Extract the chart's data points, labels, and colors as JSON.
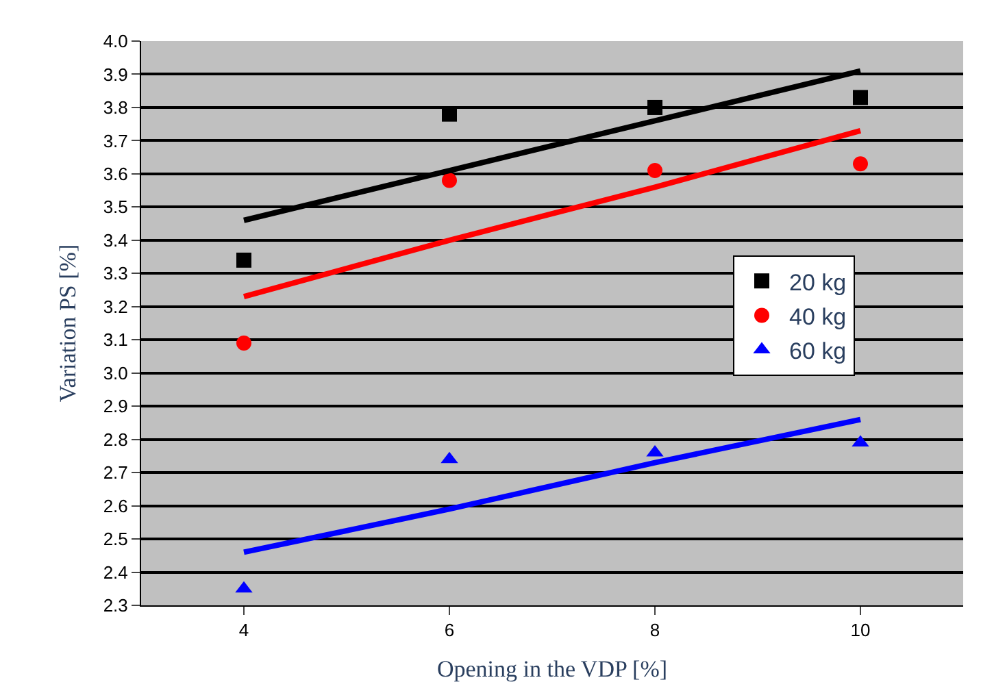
{
  "chart_data": {
    "type": "scatter",
    "xlabel": "Opening in the VDP [%]",
    "ylabel": "Variation PS [%]",
    "x": [
      4,
      6,
      8,
      10
    ],
    "series": [
      {
        "name": "20 kg",
        "color": "#000000",
        "marker": "square",
        "values": [
          3.34,
          3.78,
          3.8,
          3.83
        ]
      },
      {
        "name": "40 kg",
        "color": "#ff0000",
        "marker": "circle",
        "values": [
          3.09,
          3.58,
          3.61,
          3.63
        ]
      },
      {
        "name": "60 kg",
        "color": "#0000ff",
        "marker": "triangle",
        "values": [
          2.35,
          2.74,
          2.76,
          2.79
        ]
      },
      {
        "type": "line",
        "color": "#000000",
        "values": [
          3.46,
          3.61,
          3.76,
          3.91
        ],
        "line_style": "solid"
      },
      {
        "type": "line",
        "color": "#ff0000",
        "values": [
          3.23,
          3.4,
          3.56,
          3.73
        ],
        "line_style": "solid"
      },
      {
        "type": "line",
        "color": "#0000ff",
        "values": [
          2.46,
          2.59,
          2.73,
          2.86
        ],
        "line_style": "solid"
      }
    ],
    "xlim": [
      3,
      11
    ],
    "xticks": [
      4,
      6,
      8,
      10
    ],
    "ylim": [
      2.3,
      4.0
    ],
    "yticks": [
      {
        "value": 2.3,
        "label": "2.3"
      },
      {
        "value": 2.4,
        "label": "2.4"
      },
      {
        "value": 2.5,
        "label": "2.5"
      },
      {
        "value": 2.6,
        "label": "2.6"
      },
      {
        "value": 2.7,
        "label": "2.7"
      },
      {
        "value": 2.8,
        "label": "2.8"
      },
      {
        "value": 2.9,
        "label": "2.9"
      },
      {
        "value": 3.0,
        "label": "3.0"
      },
      {
        "value": 3.1,
        "label": "3.1"
      },
      {
        "value": 3.2,
        "label": "3.2"
      },
      {
        "value": 3.3,
        "label": "3.3"
      },
      {
        "value": 3.4,
        "label": "3.4"
      },
      {
        "value": 3.5,
        "label": "3.5"
      },
      {
        "value": 3.6,
        "label": "3.6"
      },
      {
        "value": 3.7,
        "label": "3.7"
      },
      {
        "value": 3.8,
        "label": "3.8"
      },
      {
        "value": 3.9,
        "label": "3.9"
      },
      {
        "value": 4.0,
        "label": "4.0"
      }
    ],
    "grid": "y",
    "legend": "right"
  }
}
